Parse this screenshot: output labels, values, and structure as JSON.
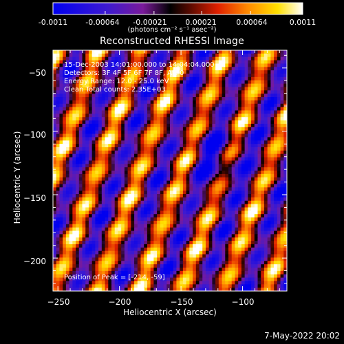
{
  "colorbar": {
    "ticks": [
      "-0.0011",
      "-0.00064",
      "-0.00021",
      "0.00021",
      "0.00064",
      "0.0011"
    ],
    "units": "(photons cm⁻² s⁻¹ asec⁻²)"
  },
  "chart_data": {
    "type": "heatmap",
    "title": "Reconstructed RHESSI Image",
    "xlabel": "Heliocentric X (arcsec)",
    "ylabel": "Heliocentric Y (arcsec)",
    "x_ticks": [
      "−250",
      "−200",
      "−150",
      "−100"
    ],
    "y_ticks": [
      "−50",
      "−100",
      "−150",
      "−200"
    ],
    "xlim": [
      -254,
      -64
    ],
    "ylim": [
      -226,
      -36
    ],
    "zlim": [
      -0.0011,
      0.0011
    ],
    "colormap": "rhessi-blue-purple-red-yellow-white",
    "annotations": [
      "15-Dec-2003 14:01:00.000 to 14:04:04.000",
      "Detectors: 3F 4F 5F 6F 7F 8F, Att 0",
      "Energy Range: 12.0 - 25.0 keV",
      "Clean    Total counts: 2.35E+03"
    ],
    "peak_label": "Position of Peak = [-214, -59]",
    "peak": [
      -214,
      -59
    ]
  },
  "footer": {
    "date": "7-May-2022 20:02"
  }
}
